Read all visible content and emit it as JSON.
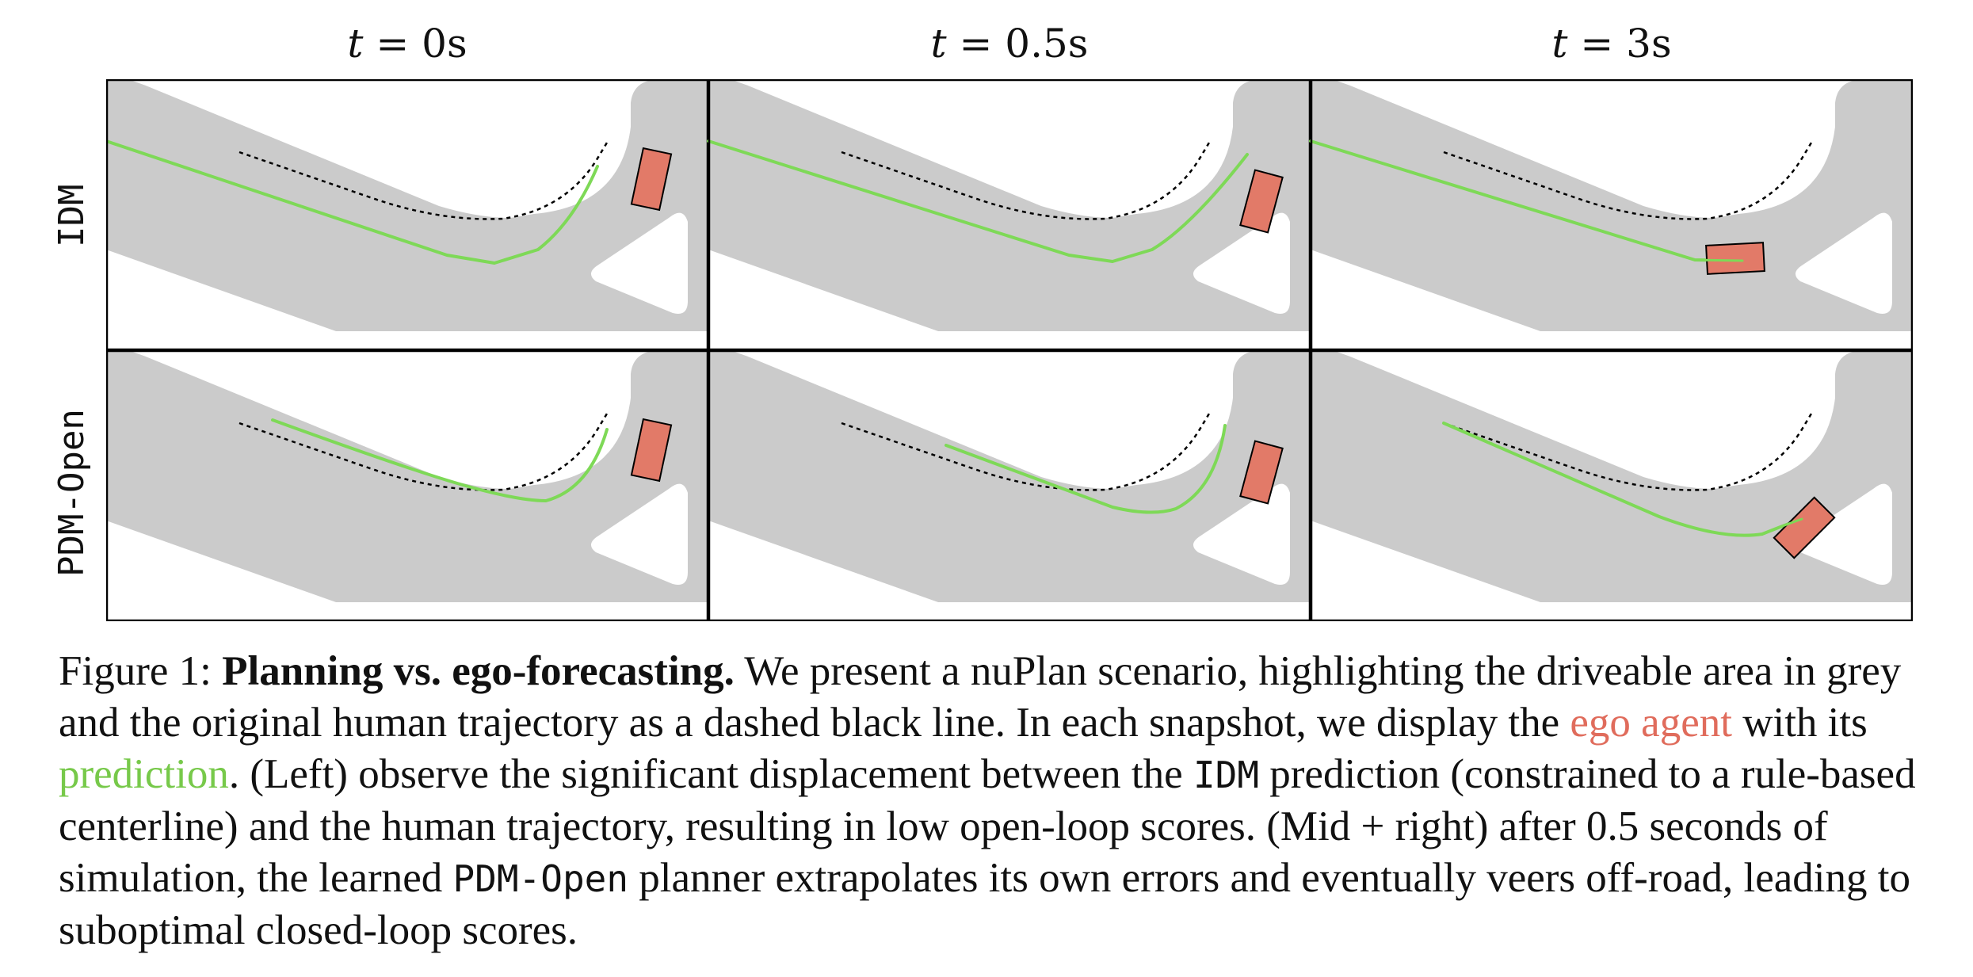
{
  "figure": {
    "columns": [
      {
        "t_var": "t",
        "t_rest": " = 0s"
      },
      {
        "t_var": "t",
        "t_rest": " = 0.5s"
      },
      {
        "t_var": "t",
        "t_rest": " = 3s"
      }
    ],
    "rows": [
      "IDM",
      "PDM-Open"
    ],
    "colors": {
      "road": "#cbcbcb",
      "ego": "#e27a68",
      "prediction": "#7ed957",
      "human": "#000000"
    }
  },
  "caption": {
    "label": "Figure 1: ",
    "title": "Planning vs. ego-forecasting.",
    "p1": " We present a nuPlan scenario, highlighting the driveable area in grey and the original human trajectory as a dashed black line. In each snapshot, we display the ",
    "ego": "ego agent",
    "p2": " with its ",
    "prediction": "prediction",
    "p3": ". (Left) observe the significant displacement between the ",
    "idm": "IDM",
    "p4": " prediction (constrained to a rule-based centerline) and the human trajectory, resulting in low open-loop scores. (Mid + right) after 0.5 seconds of simulation, the learned ",
    "pdm": "PDM-Open",
    "p5": " planner extrapolates its own errors and eventually veers off-road, leading to suboptimal closed-loop scores."
  }
}
